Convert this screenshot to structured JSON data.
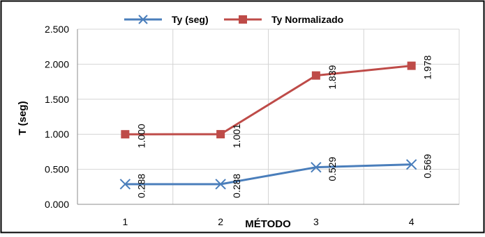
{
  "chart_data": {
    "type": "line",
    "xlabel": "MÉTODO",
    "ylabel": "T (seg)",
    "categories": [
      "1",
      "2",
      "3",
      "4"
    ],
    "ylim": [
      0,
      2.5
    ],
    "yticks": [
      "0.000",
      "0.500",
      "1.000",
      "1.500",
      "2.000",
      "2.500"
    ],
    "ytick_values": [
      0,
      0.5,
      1,
      1.5,
      2,
      2.5
    ],
    "grid": true,
    "legend_position": "top-center",
    "series": [
      {
        "name": "Ty (seg)",
        "values": [
          0.288,
          0.288,
          0.529,
          0.569
        ],
        "labels": [
          "0.288",
          "0.288",
          "0.529",
          "0.569"
        ],
        "color": "#4a7ebb",
        "marker": "x"
      },
      {
        "name": "Ty Normalizado",
        "values": [
          1.0,
          1.001,
          1.839,
          1.978
        ],
        "labels": [
          "1.000",
          "1.001",
          "1.839",
          "1.978"
        ],
        "color": "#be4b48",
        "marker": "square"
      }
    ]
  }
}
